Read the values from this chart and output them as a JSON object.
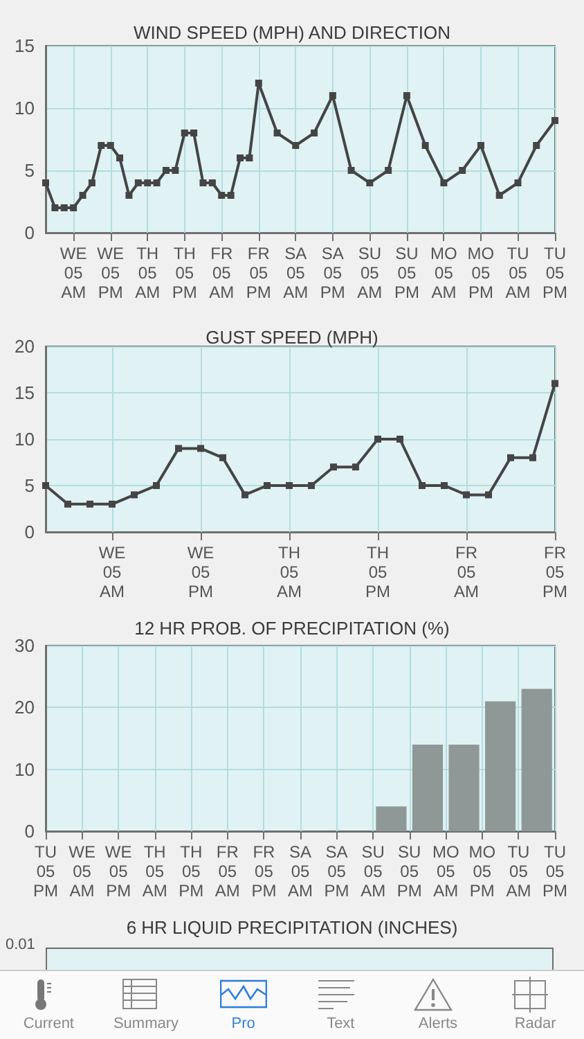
{
  "chart_data": [
    {
      "type": "line",
      "title": "WIND SPEED (MPH) AND DIRECTION",
      "color": "#454545",
      "marker": "square",
      "line_style": "solid",
      "grid": true,
      "categories": [
        null,
        null,
        null,
        "WE\n05\nAM",
        null,
        null,
        null,
        "WE\n05\nPM",
        null,
        null,
        null,
        "TH\n05\nAM",
        null,
        null,
        null,
        "TH\n05\nPM",
        null,
        null,
        null,
        "FR\n05\nAM",
        null,
        null,
        null,
        "FR\n05\nPM",
        null,
        null,
        null,
        "SA\n05\nAM",
        null,
        null,
        null,
        "SA\n05\nPM",
        null,
        null,
        null,
        "SU\n05\nAM",
        null,
        null,
        null,
        "SU\n05\nPM",
        null,
        null,
        null,
        "MO\n05\nAM",
        null,
        null,
        null,
        "MO\n05\nPM",
        null,
        null,
        null,
        "TU\n05\nAM",
        null,
        null,
        null,
        "TU\n05\nPM"
      ],
      "values": [
        4,
        2,
        2,
        2,
        3,
        4,
        7,
        7,
        6,
        3,
        4,
        4,
        4,
        5,
        5,
        8,
        8,
        4,
        4,
        3,
        3,
        6,
        6,
        12,
        null,
        8,
        null,
        7,
        null,
        8,
        null,
        11,
        null,
        5,
        null,
        4,
        null,
        5,
        null,
        11,
        null,
        7,
        null,
        4,
        null,
        5,
        null,
        7,
        null,
        3,
        null,
        4,
        null,
        7,
        null,
        9
      ],
      "ylim": [
        0,
        15
      ],
      "yticks": [
        0,
        5,
        10,
        15
      ]
    },
    {
      "type": "line",
      "title": "GUST SPEED (MPH)",
      "color": "#454545",
      "marker": "square",
      "line_style": "solid",
      "grid": true,
      "categories": [
        null,
        null,
        null,
        "WE\n05\nAM",
        null,
        null,
        null,
        "WE\n05\nPM",
        null,
        null,
        null,
        "TH\n05\nAM",
        null,
        null,
        null,
        "TH\n05\nPM",
        null,
        null,
        null,
        "FR\n05\nAM",
        null,
        null,
        null,
        "FR\n05\nPM"
      ],
      "values": [
        5,
        3,
        3,
        3,
        4,
        5,
        9,
        9,
        8,
        4,
        5,
        5,
        5,
        7,
        7,
        10,
        10,
        5,
        5,
        4,
        4,
        8,
        8,
        16
      ],
      "ylim": [
        0,
        20
      ],
      "yticks": [
        0,
        5,
        10,
        15,
        20
      ]
    },
    {
      "type": "bar",
      "title": "12 HR PROB. OF PRECIPITATION (%)",
      "color": "#8e9997",
      "grid": true,
      "categories": [
        "TU\n05\nPM",
        null,
        "WE\n05\nAM",
        null,
        "WE\n05\nPM",
        null,
        "TH\n05\nAM",
        null,
        "TH\n05\nPM",
        null,
        "FR\n05\nAM",
        null,
        "FR\n05\nPM",
        null,
        "SA\n05\nAM",
        null,
        "SA\n05\nPM",
        null,
        "SU\n05\nAM",
        null,
        "SU\n05\nPM",
        null,
        "MO\n05\nAM",
        null,
        "MO\n05\nPM",
        null,
        "TU\n05\nAM",
        null,
        "TU\n05\nPM"
      ],
      "values": [
        null,
        null,
        null,
        null,
        null,
        null,
        null,
        null,
        null,
        null,
        null,
        null,
        null,
        null,
        null,
        null,
        null,
        null,
        null,
        4,
        null,
        14,
        null,
        14,
        null,
        21,
        null,
        23,
        null
      ],
      "ylim": [
        0,
        30
      ],
      "yticks": [
        0,
        10,
        20,
        30
      ]
    },
    {
      "type": "other",
      "title": "6 HR LIQUID PRECIPITATION (INCHES)",
      "annotations": [
        "0.01"
      ]
    },
    {
      "type": "other",
      "annotations": [
        "Current",
        "Summary",
        "Pro",
        "Text",
        "Alerts",
        "Radar"
      ]
    }
  ]
}
